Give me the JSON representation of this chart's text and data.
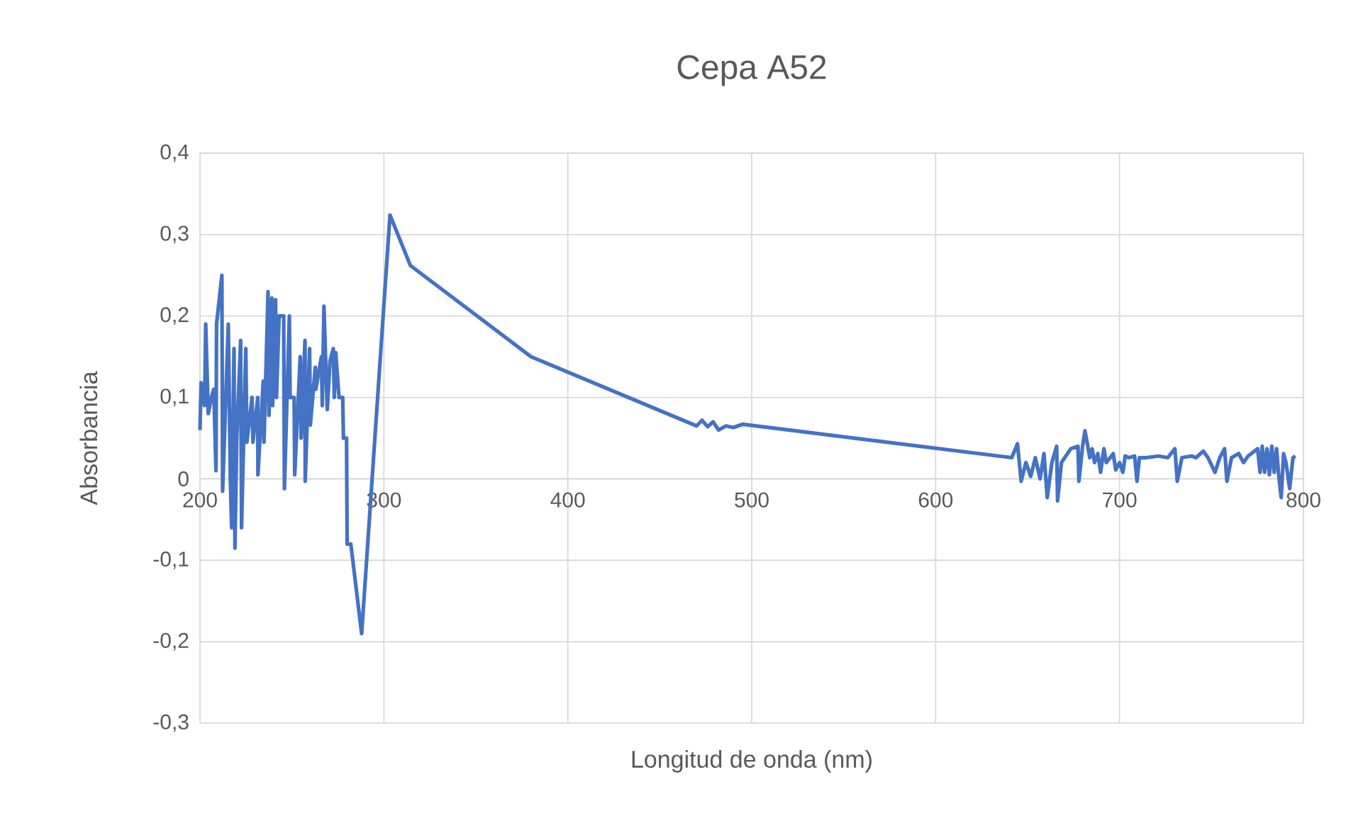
{
  "chart_data": {
    "type": "line",
    "title": "Cepa A52",
    "xlabel": "Longitud de onda (nm)",
    "ylabel": "Absorbancia",
    "color": "#4472c4",
    "grid": true,
    "xlim": [
      200,
      800
    ],
    "ylim": [
      -0.3,
      0.4
    ],
    "xticks": [
      200,
      300,
      400,
      500,
      600,
      700,
      800
    ],
    "yticks": [
      {
        "value": -0.3,
        "label": "-0,3"
      },
      {
        "value": -0.2,
        "label": "-0,2"
      },
      {
        "value": -0.1,
        "label": "-0,1"
      },
      {
        "value": 0,
        "label": "0"
      },
      {
        "value": 0.1,
        "label": "0,1"
      },
      {
        "value": 0.2,
        "label": "0,2"
      },
      {
        "value": 0.3,
        "label": "0,3"
      },
      {
        "value": 0.4,
        "label": "0,4"
      }
    ],
    "x": [
      200.0,
      200.6,
      202.5,
      203.1,
      204.5,
      206.2,
      207.5,
      208.7,
      209.0,
      211.9,
      212.3,
      215.4,
      216.5,
      217.2,
      218.5,
      219.0,
      220.0,
      222.1,
      222.6,
      224.9,
      225.5,
      228.3,
      228.8,
      231.4,
      231.5,
      234.4,
      234.8,
      237.0,
      237.5,
      239.1,
      239.5,
      241.1,
      241.6,
      243.0,
      245.5,
      245.9,
      248.6,
      249.0,
      251.2,
      251.5,
      254.5,
      255.0,
      257.1,
      257.2,
      259.6,
      260.0,
      262.7,
      263.0,
      266.0,
      266.5,
      267.4,
      269.2,
      270.7,
      272.5,
      273.0,
      273.8,
      275.6,
      277.6,
      278.0,
      279.7,
      280.0,
      282.0,
      287.9,
      303.3,
      314.4,
      380,
      470,
      473,
      476,
      479,
      482,
      486,
      490,
      495,
      641.4,
      644.5,
      646.5,
      649.1,
      651.7,
      654.2,
      656.8,
      658.9,
      660.7,
      663.2,
      665.8,
      666.3,
      668.4,
      673.5,
      677.4,
      677.9,
      679.9,
      681.2,
      682.5,
      683.8,
      685.1,
      686.4,
      688.2,
      689.7,
      691.5,
      692.8,
      694.9,
      696.6,
      697.9,
      700.0,
      701.8,
      703.1,
      705.1,
      708.2,
      709.5,
      710.8,
      714.6,
      721.1,
      726.2,
      730.1,
      731.4,
      733.9,
      739.1,
      741.6,
      745.5,
      748.1,
      751.9,
      754.5,
      757.1,
      758.4,
      760.9,
      764.8,
      767.4,
      769.9,
      775.1,
      776.4,
      777.6,
      778.9,
      780.2,
      781.5,
      782.8,
      784.1,
      785.4,
      786.6,
      787.9,
      789.2,
      790.5,
      792.5,
      794.3,
      795.6
    ],
    "values": [
      0.06,
      0.118,
      0.09,
      0.19,
      0.08,
      0.1,
      0.11,
      0.01,
      0.19,
      0.25,
      -0.015,
      0.19,
      0.0,
      -0.06,
      0.16,
      -0.085,
      0.05,
      0.17,
      -0.06,
      0.16,
      0.045,
      0.1,
      0.045,
      0.1,
      0.005,
      0.12,
      0.045,
      0.23,
      0.078,
      0.222,
      0.09,
      0.22,
      0.1,
      0.2,
      0.2,
      -0.012,
      0.2,
      0.1,
      0.1,
      0.005,
      0.15,
      0.05,
      0.17,
      -0.003,
      0.16,
      0.066,
      0.137,
      0.11,
      0.15,
      0.09,
      0.212,
      0.085,
      0.145,
      0.16,
      0.1,
      0.155,
      0.1,
      0.1,
      0.05,
      0.05,
      -0.08,
      -0.08,
      -0.19,
      0.324,
      0.262,
      0.15,
      0.065,
      0.072,
      0.064,
      0.07,
      0.06,
      0.065,
      0.063,
      0.067,
      0.026,
      0.043,
      -0.003,
      0.02,
      0.003,
      0.026,
      0.0,
      0.031,
      -0.023,
      0.02,
      0.04,
      -0.027,
      0.02,
      0.037,
      0.04,
      -0.003,
      0.04,
      0.059,
      0.043,
      0.026,
      0.037,
      0.02,
      0.031,
      0.008,
      0.037,
      0.02,
      0.026,
      0.031,
      0.011,
      0.02,
      0.008,
      0.028,
      0.026,
      0.028,
      -0.003,
      0.026,
      0.026,
      0.028,
      0.026,
      0.037,
      -0.003,
      0.026,
      0.028,
      0.026,
      0.034,
      0.026,
      0.008,
      0.026,
      0.037,
      -0.003,
      0.026,
      0.031,
      0.02,
      0.028,
      0.037,
      0.008,
      0.04,
      0.008,
      0.037,
      0.005,
      0.04,
      0.008,
      0.037,
      0.003,
      -0.023,
      0.031,
      0.02,
      -0.012,
      0.026,
      0.028
    ]
  }
}
